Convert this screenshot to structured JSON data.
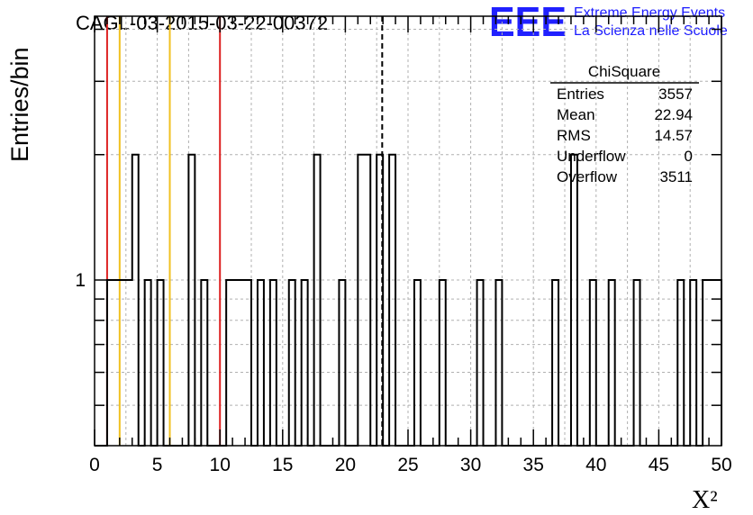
{
  "header": {
    "run_title": "CAGL-03-2015-03-22-00372",
    "logo_text": "EEE",
    "logo_line1": "Extreme Energy Events",
    "logo_line2": "La Scienza nelle Scuole"
  },
  "stats_box": {
    "title": "ChiSquare",
    "rows": [
      {
        "label": "Entries",
        "value": "3557"
      },
      {
        "label": "Mean",
        "value": "22.94"
      },
      {
        "label": "RMS",
        "value": "14.57"
      },
      {
        "label": "Underflow",
        "value": "0"
      },
      {
        "label": "Overflow",
        "value": "3511"
      }
    ]
  },
  "colors": {
    "red_line": "#dd2222",
    "yellow_line": "#f0c020",
    "histogram": "#000000",
    "grid": "#b0b0b0",
    "logo_blue": "#2020ff"
  },
  "chart_data": {
    "type": "histogram",
    "title": "CAGL-03-2015-03-22-00372",
    "xlabel": "X²",
    "ylabel": "Entries/bin",
    "xlim": [
      0,
      50
    ],
    "ylim": [
      0.4,
      4.3
    ],
    "y_scale": "log",
    "x_ticks": [
      0,
      5,
      10,
      15,
      20,
      25,
      30,
      35,
      40,
      45,
      50
    ],
    "y_tick_labels": [
      {
        "value": 1,
        "label": "1"
      }
    ],
    "grid": true,
    "bin_width": 0.5,
    "bins": [
      {
        "x": 1.0,
        "count": 1
      },
      {
        "x": 1.5,
        "count": 1
      },
      {
        "x": 2.0,
        "count": 1
      },
      {
        "x": 2.5,
        "count": 1
      },
      {
        "x": 3.0,
        "count": 2
      },
      {
        "x": 4.0,
        "count": 1
      },
      {
        "x": 5.0,
        "count": 1
      },
      {
        "x": 7.5,
        "count": 2
      },
      {
        "x": 8.5,
        "count": 1
      },
      {
        "x": 10.5,
        "count": 1
      },
      {
        "x": 11.0,
        "count": 1
      },
      {
        "x": 11.5,
        "count": 1
      },
      {
        "x": 12.0,
        "count": 1
      },
      {
        "x": 13.0,
        "count": 1
      },
      {
        "x": 14.0,
        "count": 1
      },
      {
        "x": 15.5,
        "count": 1
      },
      {
        "x": 16.5,
        "count": 1
      },
      {
        "x": 17.5,
        "count": 2
      },
      {
        "x": 19.5,
        "count": 1
      },
      {
        "x": 21.0,
        "count": 2
      },
      {
        "x": 21.5,
        "count": 2
      },
      {
        "x": 22.5,
        "count": 2
      },
      {
        "x": 23.5,
        "count": 2
      },
      {
        "x": 25.5,
        "count": 1
      },
      {
        "x": 27.5,
        "count": 1
      },
      {
        "x": 30.5,
        "count": 1
      },
      {
        "x": 32.0,
        "count": 1
      },
      {
        "x": 36.5,
        "count": 1
      },
      {
        "x": 38.0,
        "count": 2
      },
      {
        "x": 39.5,
        "count": 1
      },
      {
        "x": 41.0,
        "count": 1
      },
      {
        "x": 43.0,
        "count": 1
      },
      {
        "x": 46.5,
        "count": 1
      },
      {
        "x": 47.5,
        "count": 1
      },
      {
        "x": 48.5,
        "count": 1
      },
      {
        "x": 49.0,
        "count": 1
      },
      {
        "x": 49.5,
        "count": 1
      }
    ],
    "vertical_lines": [
      {
        "x": 1.0,
        "color": "#dd2222",
        "style": "solid"
      },
      {
        "x": 2.0,
        "color": "#f0c020",
        "style": "solid"
      },
      {
        "x": 6.0,
        "color": "#f0c020",
        "style": "solid"
      },
      {
        "x": 10.0,
        "color": "#dd2222",
        "style": "solid"
      },
      {
        "x": 22.94,
        "color": "#000000",
        "style": "dashed"
      }
    ]
  }
}
